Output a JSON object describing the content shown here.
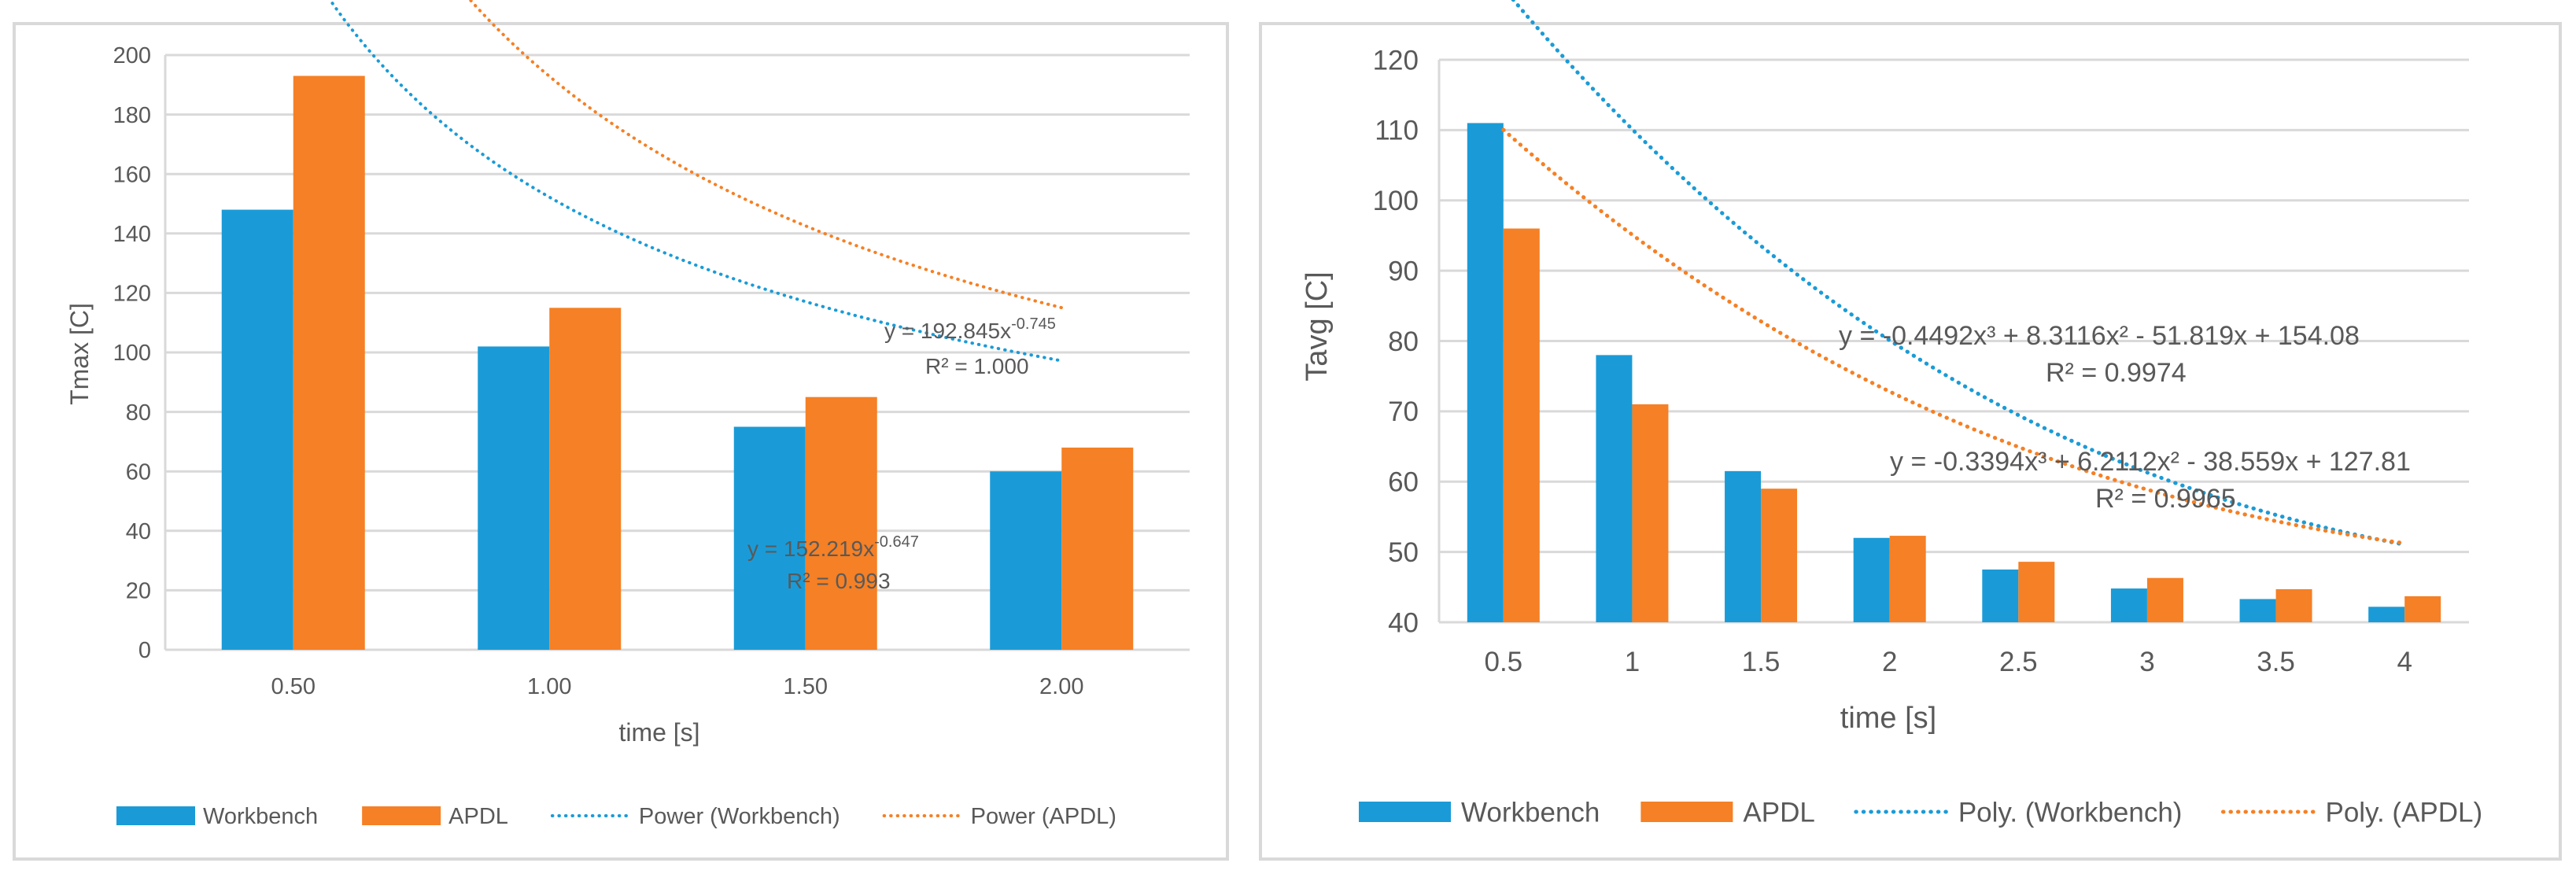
{
  "chart_data": [
    {
      "type": "bar",
      "title": "",
      "xlabel": "time [s]",
      "ylabel": "Tmax [C]",
      "categories": [
        "0.50",
        "1.00",
        "1.50",
        "2.00"
      ],
      "x_numeric": [
        0.5,
        1.0,
        1.5,
        2.0
      ],
      "ylim": [
        0,
        200
      ],
      "yticks": [
        0,
        20,
        40,
        60,
        80,
        100,
        120,
        140,
        160,
        180,
        200
      ],
      "ytick_labels": [
        "0",
        "20",
        "40",
        "60",
        "80",
        "100",
        "120",
        "140",
        "160",
        "180",
        "200"
      ],
      "grid": true,
      "legend_position": "bottom",
      "series": [
        {
          "name": "Workbench",
          "color": "#1a9bd7",
          "values": [
            148,
            102,
            75,
            60
          ]
        },
        {
          "name": "APDL",
          "color": "#f58025",
          "values": [
            193,
            115,
            85,
            68
          ]
        }
      ],
      "trendlines": [
        {
          "name": "Power (Workbench)",
          "kind": "power",
          "color": "#1a9bd7",
          "coefficients": {
            "a": 152.219,
            "b": -0.647
          },
          "equation": {
            "base": "y = 152.219x",
            "exponent": "-0.647"
          },
          "r2_label": "R² = 0.993"
        },
        {
          "name": "Power (APDL)",
          "kind": "power",
          "color": "#f58025",
          "coefficients": {
            "a": 192.845,
            "b": -0.745
          },
          "equation": {
            "base": "y = 192.845x",
            "exponent": "-0.745"
          },
          "r2_label": "R² = 1.000"
        }
      ],
      "legend": [
        {
          "label": "Workbench",
          "kind": "bar",
          "color": "#1a9bd7"
        },
        {
          "label": "APDL",
          "kind": "bar",
          "color": "#f58025"
        },
        {
          "label": "Power (Workbench)",
          "kind": "dotted",
          "color": "#1a9bd7"
        },
        {
          "label": "Power (APDL)",
          "kind": "dotted",
          "color": "#f58025"
        }
      ]
    },
    {
      "type": "bar",
      "title": "",
      "xlabel": "time [s]",
      "ylabel": "Tavg [C]",
      "categories": [
        "0.5",
        "1",
        "1.5",
        "2",
        "2.5",
        "3",
        "3.5",
        "4"
      ],
      "x_numeric": [
        0.5,
        1,
        1.5,
        2,
        2.5,
        3,
        3.5,
        4
      ],
      "ylim": [
        40,
        120
      ],
      "yticks": [
        40,
        50,
        60,
        70,
        80,
        90,
        100,
        110,
        120
      ],
      "ytick_labels": [
        "40",
        "50",
        "60",
        "70",
        "80",
        "90",
        "100",
        "110",
        "120"
      ],
      "grid": true,
      "legend_position": "bottom",
      "series": [
        {
          "name": "Workbench",
          "color": "#1a9bd7",
          "values": [
            111,
            78,
            61.5,
            52,
            47.5,
            44.8,
            43.3,
            42.2
          ]
        },
        {
          "name": "APDL",
          "color": "#f58025",
          "values": [
            96,
            71,
            59,
            52.3,
            48.6,
            46.3,
            44.7,
            43.7
          ]
        }
      ],
      "trendlines": [
        {
          "name": "Poly. (Workbench)",
          "kind": "poly",
          "color": "#1a9bd7",
          "coefficients": {
            "c3": -0.4492,
            "c2": 8.3116,
            "c1": -51.819,
            "c0": 154.08
          },
          "equation": {
            "text": "y = -0.4492x³ + 8.3116x² - 51.819x + 154.08"
          },
          "r2_label": "R² = 0.9974"
        },
        {
          "name": "Poly. (APDL)",
          "kind": "poly",
          "color": "#f58025",
          "coefficients": {
            "c3": -0.3394,
            "c2": 6.2112,
            "c1": -38.559,
            "c0": 127.81
          },
          "equation": {
            "text": "y = -0.3394x³ + 6.2112x² - 38.559x + 127.81"
          },
          "r2_label": "R² = 0.9965"
        }
      ],
      "legend": [
        {
          "label": "Workbench",
          "kind": "bar",
          "color": "#1a9bd7"
        },
        {
          "label": "APDL",
          "kind": "bar",
          "color": "#f58025"
        },
        {
          "label": "Poly. (Workbench)",
          "kind": "dotted",
          "color": "#1a9bd7"
        },
        {
          "label": "Poly. (APDL)",
          "kind": "dotted",
          "color": "#f58025"
        }
      ]
    }
  ]
}
